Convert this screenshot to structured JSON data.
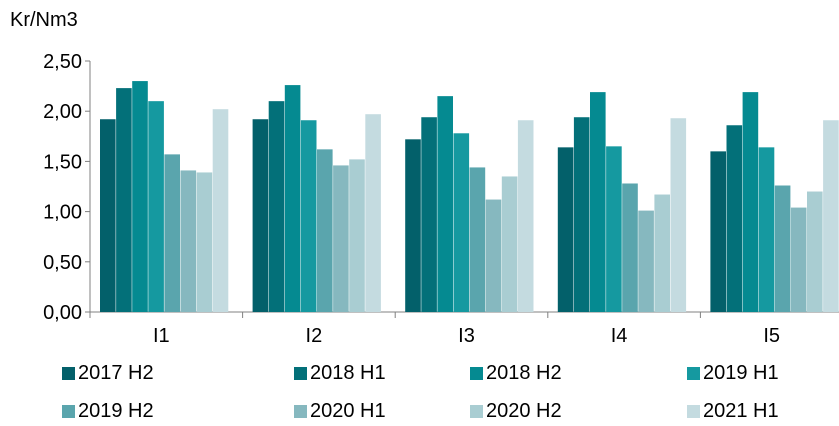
{
  "chart_data": {
    "type": "bar",
    "title": "",
    "ylabel": "Kr/Nm3",
    "xlabel": "",
    "ylim": [
      0,
      2.5
    ],
    "yticks": [
      "0,00",
      "0,50",
      "1,00",
      "1,50",
      "2,00",
      "2,50"
    ],
    "categories": [
      "I1",
      "I2",
      "I3",
      "I4",
      "I5"
    ],
    "grid": false,
    "legend_position": "bottom",
    "series": [
      {
        "name": "2017 H2",
        "color": "#03606a",
        "values": [
          1.92,
          1.92,
          1.72,
          1.64,
          1.6
        ]
      },
      {
        "name": "2018 H1",
        "color": "#037079",
        "values": [
          2.23,
          2.1,
          1.94,
          1.94,
          1.86
        ]
      },
      {
        "name": "2018 H2",
        "color": "#058a91",
        "values": [
          2.3,
          2.26,
          2.15,
          2.19,
          2.19
        ]
      },
      {
        "name": "2019 H1",
        "color": "#1599a0",
        "values": [
          2.1,
          1.91,
          1.78,
          1.65,
          1.64
        ]
      },
      {
        "name": "2019 H2",
        "color": "#5aa5ad",
        "values": [
          1.57,
          1.62,
          1.44,
          1.28,
          1.26
        ]
      },
      {
        "name": "2020 H1",
        "color": "#86b8bf",
        "values": [
          1.41,
          1.46,
          1.12,
          1.01,
          1.04
        ]
      },
      {
        "name": "2020 H2",
        "color": "#a9cdd2",
        "values": [
          1.39,
          1.52,
          1.35,
          1.17,
          1.2
        ]
      },
      {
        "name": "2021 H1",
        "color": "#c4dbe0",
        "values": [
          2.02,
          1.97,
          1.91,
          1.93,
          1.91
        ]
      }
    ]
  }
}
